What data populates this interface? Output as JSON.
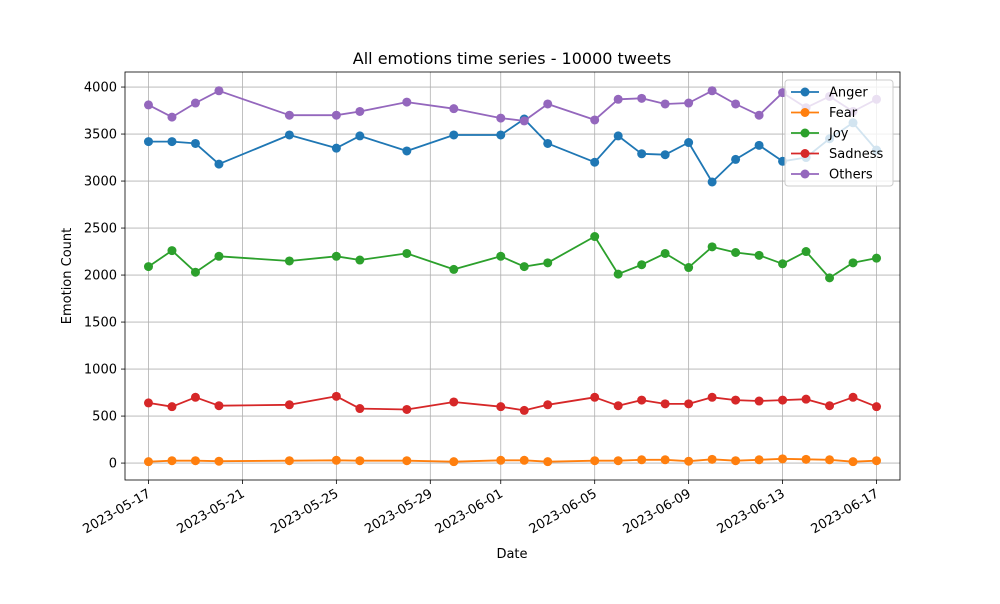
{
  "chart_data": {
    "type": "line",
    "title": "All emotions time series - 10000 tweets",
    "xlabel": "Date",
    "ylabel": "Emotion Count",
    "x": [
      "2023-05-17",
      "2023-05-18",
      "2023-05-19",
      "2023-05-20",
      "2023-05-23",
      "2023-05-25",
      "2023-05-26",
      "2023-05-28",
      "2023-05-30",
      "2023-06-01",
      "2023-06-02",
      "2023-06-03",
      "2023-06-05",
      "2023-06-06",
      "2023-06-07",
      "2023-06-08",
      "2023-06-09",
      "2023-06-10",
      "2023-06-11",
      "2023-06-12",
      "2023-06-13",
      "2023-06-14",
      "2023-06-15",
      "2023-06-16",
      "2023-06-17"
    ],
    "x_ticks": [
      "2023-05-17",
      "2023-05-21",
      "2023-05-25",
      "2023-05-29",
      "2023-06-01",
      "2023-06-05",
      "2023-06-09",
      "2023-06-13",
      "2023-06-17"
    ],
    "xlim": [
      "2023-05-16",
      "2023-06-18"
    ],
    "ylim": [
      -180,
      4160
    ],
    "y_ticks": [
      0,
      500,
      1000,
      1500,
      2000,
      2500,
      3000,
      3500,
      4000
    ],
    "grid": true,
    "legend_position": "top-right",
    "series": [
      {
        "name": "Anger",
        "color": "#1f77b4",
        "values": [
          3420,
          3420,
          3400,
          3180,
          3490,
          3350,
          3480,
          3320,
          3490,
          3490,
          3660,
          3400,
          3200,
          3480,
          3290,
          3280,
          3410,
          2990,
          3230,
          3380,
          3210,
          3250,
          3450,
          3620,
          3330
        ]
      },
      {
        "name": "Fear",
        "color": "#ff7f0e",
        "values": [
          15,
          25,
          25,
          20,
          25,
          30,
          25,
          25,
          15,
          30,
          30,
          15,
          25,
          25,
          35,
          35,
          20,
          40,
          25,
          35,
          45,
          40,
          35,
          15,
          25
        ]
      },
      {
        "name": "Joy",
        "color": "#2ca02c",
        "values": [
          2090,
          2260,
          2030,
          2200,
          2150,
          2200,
          2160,
          2230,
          2060,
          2200,
          2090,
          2130,
          2410,
          2010,
          2110,
          2230,
          2080,
          2300,
          2240,
          2210,
          2120,
          2250,
          1970,
          2130,
          2180
        ]
      },
      {
        "name": "Sadness",
        "color": "#d62728",
        "values": [
          640,
          600,
          700,
          610,
          620,
          710,
          580,
          570,
          650,
          600,
          560,
          620,
          700,
          610,
          670,
          630,
          630,
          700,
          670,
          660,
          670,
          680,
          610,
          700,
          600
        ]
      },
      {
        "name": "Others",
        "color": "#9467bd",
        "values": [
          3810,
          3680,
          3830,
          3960,
          3700,
          3700,
          3740,
          3840,
          3770,
          3670,
          3640,
          3820,
          3650,
          3870,
          3880,
          3820,
          3830,
          3960,
          3820,
          3700,
          3940,
          3780,
          3900,
          3740,
          3870
        ]
      }
    ]
  }
}
